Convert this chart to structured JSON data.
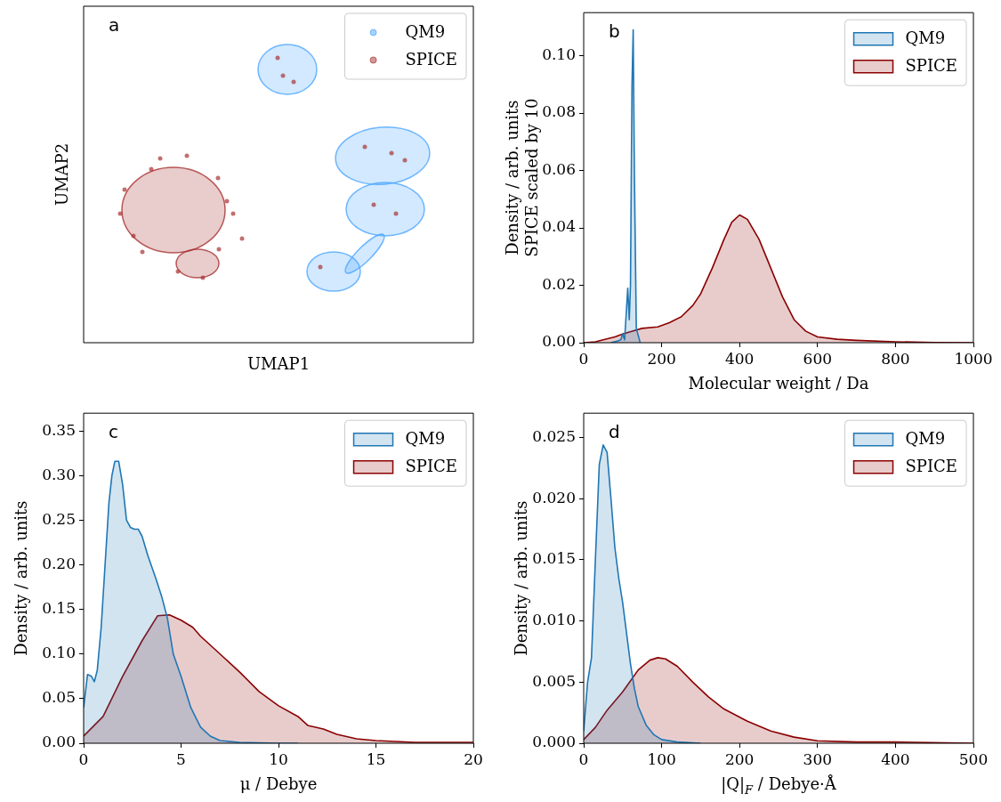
{
  "chart_data": [
    {
      "type": "other",
      "xlabel": "UMAP1",
      "ylabel": "UMAP2",
      "annotations": [
        "a"
      ],
      "legend": "top right",
      "series": [
        {
          "name": "QM9",
          "color": "#4da6ff"
        },
        {
          "name": "SPICE",
          "color": "#a83232"
        }
      ]
    },
    {
      "type": "area",
      "xlabel": "Molecular weight / Da",
      "ylabel": "Density / arb. units\nSPICE scaled by 10",
      "annotations": [
        "b"
      ],
      "xlim": [
        0,
        1000
      ],
      "ylim": [
        0,
        0.115
      ],
      "xticks": [
        0,
        200,
        400,
        600,
        800,
        1000
      ],
      "yticks": [
        {
          "value": 0,
          "label": "0.00"
        },
        {
          "value": 0.02,
          "label": "0.02"
        },
        {
          "value": 0.04,
          "label": "0.04"
        },
        {
          "value": 0.06,
          "label": "0.06"
        },
        {
          "value": 0.08,
          "label": "0.08"
        },
        {
          "value": 0.1,
          "label": "0.10"
        }
      ],
      "legend": "top right",
      "series": [
        {
          "name": "QM9",
          "color": "#1f77b4",
          "x": [
            70,
            85,
            95,
            100,
            105,
            110,
            113,
            117,
            120,
            124,
            127,
            130,
            135,
            145
          ],
          "values": [
            0,
            0.0005,
            0.001,
            0.003,
            0.001,
            0.012,
            0.019,
            0.008,
            0.02,
            0.09,
            0.109,
            0.06,
            0.005,
            0
          ]
        },
        {
          "name": "SPICE",
          "color": "#8b0000",
          "x": [
            0,
            30,
            50,
            80,
            100,
            125,
            150,
            190,
            220,
            250,
            280,
            300,
            330,
            360,
            380,
            400,
            420,
            450,
            480,
            510,
            540,
            570,
            600,
            650,
            700,
            800,
            900,
            1000
          ],
          "values": [
            0,
            0.0003,
            0.001,
            0.002,
            0.003,
            0.004,
            0.005,
            0.0055,
            0.007,
            0.009,
            0.013,
            0.017,
            0.026,
            0.036,
            0.042,
            0.0445,
            0.043,
            0.036,
            0.026,
            0.016,
            0.008,
            0.004,
            0.002,
            0.0012,
            0.0008,
            0.0003,
            0.0001,
            0
          ]
        }
      ]
    },
    {
      "type": "area",
      "xlabel": "μ / Debye",
      "ylabel": "Density / arb. units",
      "annotations": [
        "c"
      ],
      "xlim": [
        0,
        20
      ],
      "ylim": [
        0,
        0.37
      ],
      "xticks": [
        0,
        5,
        10,
        15,
        20
      ],
      "yticks": [
        {
          "value": 0,
          "label": "0.00"
        },
        {
          "value": 0.05,
          "label": "0.05"
        },
        {
          "value": 0.1,
          "label": "0.10"
        },
        {
          "value": 0.15,
          "label": "0.15"
        },
        {
          "value": 0.2,
          "label": "0.20"
        },
        {
          "value": 0.25,
          "label": "0.25"
        },
        {
          "value": 0.3,
          "label": "0.30"
        },
        {
          "value": 0.35,
          "label": "0.35"
        }
      ],
      "legend": "top right",
      "series": [
        {
          "name": "QM9",
          "color": "#1f77b4",
          "x": [
            0,
            0.2,
            0.4,
            0.55,
            0.7,
            0.9,
            1.1,
            1.3,
            1.45,
            1.6,
            1.8,
            2.0,
            2.2,
            2.4,
            2.6,
            2.8,
            3.0,
            3.3,
            3.7,
            4.0,
            4.3,
            4.6,
            5.0,
            5.5,
            6.0,
            6.5,
            7,
            8,
            10,
            11
          ],
          "values": [
            0.04,
            0.077,
            0.075,
            0.069,
            0.082,
            0.13,
            0.2,
            0.27,
            0.3,
            0.316,
            0.316,
            0.29,
            0.25,
            0.242,
            0.24,
            0.24,
            0.232,
            0.21,
            0.185,
            0.165,
            0.14,
            0.1,
            0.075,
            0.04,
            0.018,
            0.008,
            0.003,
            0.001,
            0,
            0
          ]
        },
        {
          "name": "SPICE",
          "color": "#8b0000",
          "x": [
            0,
            1,
            2,
            3,
            3.8,
            4.4,
            5,
            5.6,
            6,
            7,
            8,
            9,
            10,
            11,
            11.5,
            12.3,
            13,
            14,
            15,
            17,
            20
          ],
          "values": [
            0.008,
            0.03,
            0.075,
            0.115,
            0.143,
            0.144,
            0.138,
            0.13,
            0.12,
            0.1,
            0.08,
            0.058,
            0.042,
            0.03,
            0.02,
            0.016,
            0.01,
            0.005,
            0.003,
            0.001,
            0.001
          ]
        }
      ]
    },
    {
      "type": "area",
      "xlabel": "|Q|$_{F}$ / Debye·Å",
      "ylabel": "Density / arb. units",
      "annotations": [
        "d"
      ],
      "xlim": [
        0,
        500
      ],
      "ylim": [
        0,
        0.027
      ],
      "xticks": [
        0,
        100,
        200,
        300,
        400,
        500
      ],
      "yticks": [
        {
          "value": 0,
          "label": "0.000"
        },
        {
          "value": 0.005,
          "label": "0.005"
        },
        {
          "value": 0.01,
          "label": "0.010"
        },
        {
          "value": 0.015,
          "label": "0.015"
        },
        {
          "value": 0.02,
          "label": "0.020"
        },
        {
          "value": 0.025,
          "label": "0.025"
        }
      ],
      "legend": "top right",
      "series": [
        {
          "name": "QM9",
          "color": "#1f77b4",
          "x": [
            0,
            5,
            10,
            15,
            20,
            25,
            30,
            35,
            40,
            45,
            50,
            55,
            60,
            65,
            70,
            80,
            90,
            100,
            120,
            150
          ],
          "values": [
            0.001,
            0.005,
            0.007,
            0.015,
            0.0228,
            0.0244,
            0.0238,
            0.02,
            0.016,
            0.0135,
            0.0115,
            0.009,
            0.0065,
            0.0045,
            0.003,
            0.0015,
            0.0007,
            0.0003,
            0.0001,
            0
          ]
        },
        {
          "name": "SPICE",
          "color": "#8b0000",
          "x": [
            0,
            15,
            30,
            50,
            70,
            85,
            95,
            105,
            120,
            140,
            160,
            180,
            210,
            240,
            270,
            300,
            350,
            400,
            500
          ],
          "values": [
            0.0003,
            0.0013,
            0.0027,
            0.0042,
            0.006,
            0.0068,
            0.007,
            0.0069,
            0.0063,
            0.005,
            0.0038,
            0.0028,
            0.0018,
            0.001,
            0.0005,
            0.0002,
            0.0001,
            0.0001,
            0
          ]
        }
      ]
    }
  ]
}
